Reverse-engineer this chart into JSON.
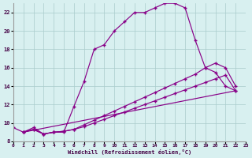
{
  "xlabel": "Windchill (Refroidissement éolien,°C)",
  "bg_color": "#d8f0f0",
  "line_color": "#880088",
  "xlim": [
    0,
    23
  ],
  "ylim": [
    8,
    23
  ],
  "xticks": [
    0,
    1,
    2,
    3,
    4,
    5,
    6,
    7,
    8,
    9,
    10,
    11,
    12,
    13,
    14,
    15,
    16,
    17,
    18,
    19,
    20,
    21,
    22,
    23
  ],
  "yticks": [
    8,
    10,
    12,
    14,
    16,
    18,
    20,
    22
  ],
  "curve1_x": [
    0,
    1,
    2,
    3,
    4,
    5,
    6,
    7,
    8,
    9,
    10,
    11,
    12,
    13,
    14,
    15,
    16,
    17,
    18,
    19,
    20,
    21,
    22,
    1
  ],
  "curve1_y": [
    9.5,
    9.0,
    9.5,
    8.8,
    9.0,
    9.0,
    11.8,
    14.5,
    18.0,
    18.5,
    20.0,
    21.0,
    22.0,
    22.0,
    22.5,
    23.0,
    23.0,
    22.5,
    19.0,
    16.0,
    15.5,
    14.0,
    13.5,
    9.0
  ],
  "curve2_x": [
    1,
    2,
    3,
    4,
    5,
    6,
    7,
    8,
    9,
    10,
    11,
    12,
    13,
    14,
    15,
    16,
    17,
    18,
    19,
    20,
    21,
    22
  ],
  "curve2_y": [
    9.0,
    9.3,
    8.8,
    9.0,
    9.1,
    9.3,
    9.6,
    10.0,
    10.4,
    10.8,
    11.2,
    11.6,
    12.0,
    12.4,
    12.8,
    13.2,
    13.6,
    14.0,
    14.4,
    14.8,
    15.2,
    13.5
  ],
  "curve3_x": [
    1,
    2,
    3,
    4,
    5,
    6,
    7,
    8,
    9,
    10,
    11,
    12,
    13,
    14,
    15,
    16,
    17,
    18,
    19,
    20,
    21,
    22
  ],
  "curve3_y": [
    9.0,
    9.3,
    8.8,
    9.0,
    9.1,
    9.3,
    9.8,
    10.3,
    10.8,
    11.3,
    11.8,
    12.3,
    12.8,
    13.3,
    13.8,
    14.3,
    14.8,
    15.3,
    16.0,
    16.5,
    16.0,
    14.0
  ]
}
